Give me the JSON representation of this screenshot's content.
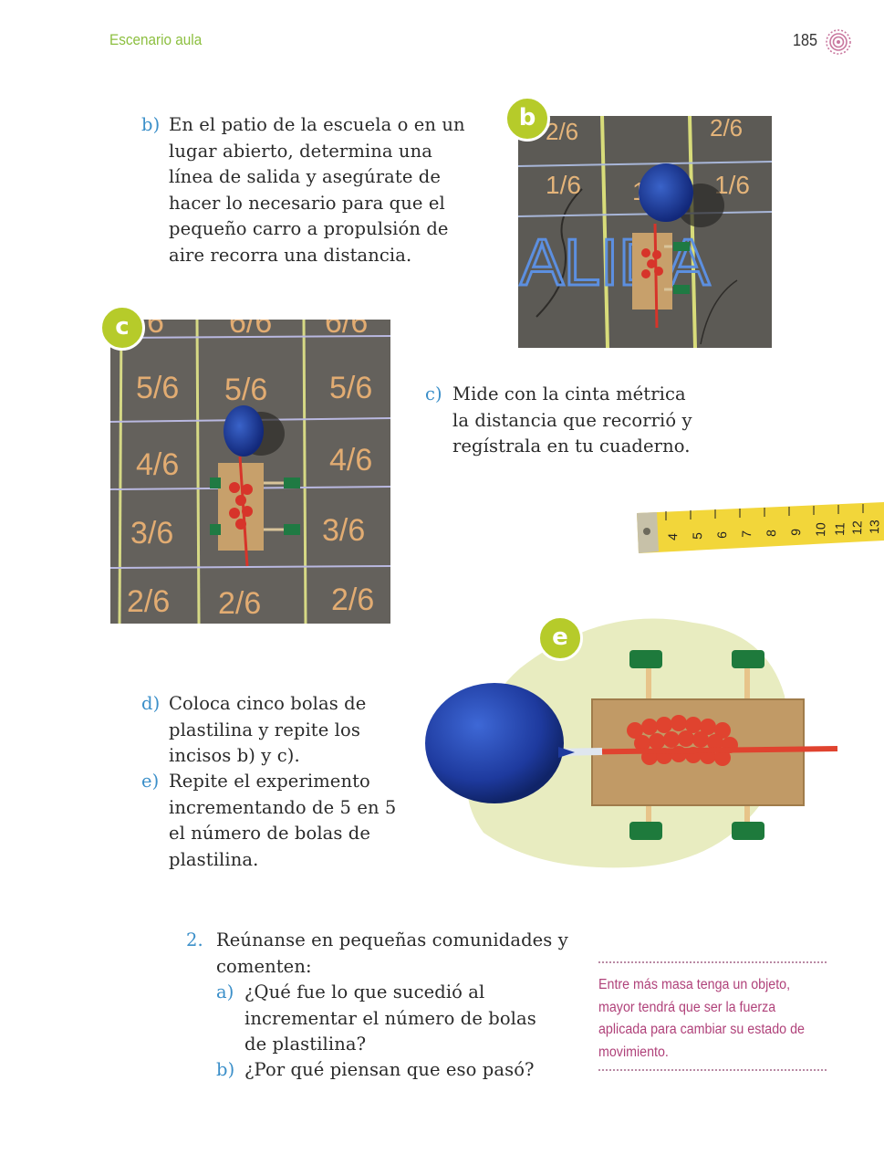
{
  "header": {
    "section": "Escenario aula",
    "page_number": "185",
    "icon": "concentric-target-icon"
  },
  "items": {
    "b": {
      "marker": "b)",
      "text": "En el patio de la escuela o en un lugar abierto, determina una línea de salida y asegúrate de hacer lo necesario para que el pequeño carro a propulsión de aire recorra una distancia."
    },
    "c": {
      "marker": "c)",
      "text": "Mide con la cinta métrica la distancia que recorrió y regístrala en tu cuaderno."
    },
    "d": {
      "marker": "d)",
      "text": "Coloca cinco bolas de plastilina y repite los incisos b) y c)."
    },
    "e": {
      "marker": "e)",
      "text": "Repite el experimento incrementando de 5 en 5 el número de bolas de plastilina."
    }
  },
  "question2": {
    "number": "2.",
    "text": "Reúnanse en pequeñas comunidades y comenten:",
    "a": {
      "marker": "a)",
      "text": "¿Qué fue lo que sucedió al incrementar el número de bolas de plastilina?"
    },
    "b": {
      "marker": "b)",
      "text": "¿Por qué piensan que eso pasó?"
    }
  },
  "photos": {
    "b_badge": "b",
    "c_badge": "c",
    "e_badge": "e",
    "chalk_b": [
      "2/6",
      "2/6",
      "1/6",
      "1/6",
      "1/6",
      "ALIDA"
    ],
    "chalk_c": [
      "6",
      "6/6",
      "6/6",
      "5/6",
      "5/6",
      "5/6",
      "4/6",
      "4/6",
      "3/6",
      "3/6",
      "2/6",
      "2/6",
      "2/6"
    ],
    "tape_numbers": [
      "4",
      "5",
      "6",
      "7",
      "8",
      "9",
      "10",
      "11",
      "12",
      "13"
    ]
  },
  "note": {
    "text": "Entre más masa tenga un objeto, mayor tendrá que ser la fuerza aplicada para cambiar su estado de movimiento."
  },
  "colors": {
    "accent_green": "#8cbf3f",
    "marker_blue": "#3b8fc9",
    "badge_green": "#b6cb2a",
    "note_magenta": "#b0427a"
  }
}
